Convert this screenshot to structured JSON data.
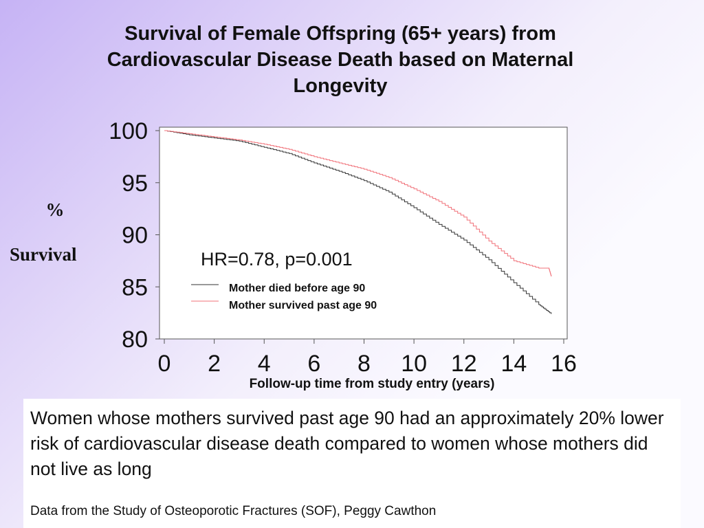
{
  "slide": {
    "title": "Survival of Female Offspring (65+ years) from Cardiovascular Disease Death based on Maternal Longevity",
    "finding": "Women whose mothers survived past age 90 had an approximately 20% lower risk of cardiovascular disease death compared to women whose mothers did not live as long",
    "source": "Data from the Study of Osteoporotic Fractures (SOF), Peggy Cawthon"
  },
  "chart_data": {
    "type": "line",
    "title": "",
    "xlabel": "Follow-up time from study entry (years)",
    "ylabel_parts": [
      "%",
      "Survival"
    ],
    "xlim": [
      0,
      16
    ],
    "ylim": [
      80,
      100
    ],
    "x_ticks": [
      "0",
      "2",
      "4",
      "6",
      "8",
      "10",
      "12",
      "14",
      "16"
    ],
    "y_ticks": [
      "100",
      "95",
      "90",
      "85",
      "80"
    ],
    "annotation": "HR=0.78, p=0.001",
    "grid": false,
    "legend_position": "center-bottom",
    "series": [
      {
        "name": "Mother died before age 90",
        "color": "#333333",
        "x": [
          0,
          1,
          2,
          3,
          4,
          5,
          6,
          7,
          8,
          9,
          10,
          11,
          12,
          13,
          14,
          15,
          15.5
        ],
        "y": [
          100,
          99.6,
          99.3,
          99.0,
          98.4,
          97.8,
          96.9,
          96.1,
          95.2,
          94.1,
          92.6,
          91.0,
          89.5,
          87.6,
          85.4,
          83.3,
          82.4
        ]
      },
      {
        "name": "Mother survived past age 90",
        "color": "#f07078",
        "x": [
          0,
          1,
          2,
          3,
          4,
          5,
          6,
          7,
          8,
          9,
          10,
          11,
          12,
          13,
          14,
          15,
          15.4,
          15.5
        ],
        "y": [
          100,
          99.7,
          99.4,
          99.1,
          98.7,
          98.2,
          97.5,
          96.9,
          96.3,
          95.5,
          94.4,
          93.2,
          91.7,
          89.4,
          87.5,
          86.8,
          86.8,
          86.0
        ]
      }
    ]
  }
}
